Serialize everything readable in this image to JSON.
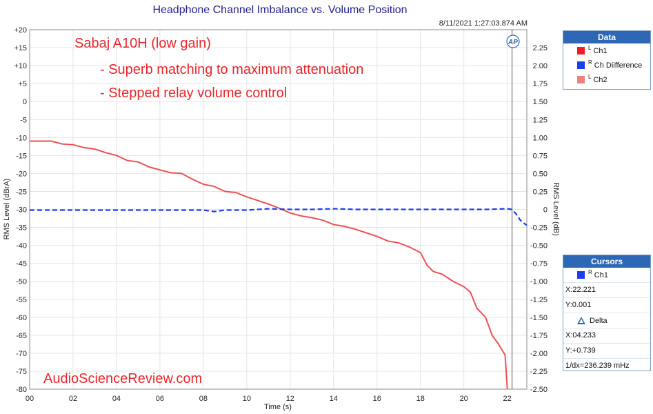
{
  "colors": {
    "ch1": "#ee1c24",
    "ch_diff": "#1c3cf0",
    "ch2": "#f08080",
    "accent": "#2d67b5",
    "annotation": "#e8262b"
  },
  "legend_panel": {
    "title": "Data",
    "items": [
      {
        "sup": "L",
        "label": "Ch1",
        "color": "#ee1c24"
      },
      {
        "sup": "R",
        "label": "Ch Diifference",
        "color": "#1c3cf0"
      },
      {
        "sup": "L",
        "label": "Ch2",
        "color": "#f08080"
      }
    ]
  },
  "cursors_panel": {
    "title": "Cursors",
    "cursor_sup": "R",
    "cursor_label": "Ch1",
    "x": "X:22.221",
    "y": "Y:0.001",
    "delta_label": "Delta",
    "dx": "X:04.233",
    "dy": "Y:+0.739",
    "ratio": "1/dx=236.239 mHz"
  },
  "annotations": {
    "line1": "Sabaj A10H (low gain)",
    "line2": "- Superb matching to maximum attenuation",
    "line3": "- Stepped relay volume control",
    "watermark": "AudioScienceReview.com"
  },
  "chart_data": {
    "type": "line",
    "title": "Headphone Channel Imbalance vs. Volume Position",
    "timestamp": "8/11/2021 1:27:03.874 AM",
    "logo_text": "AP",
    "xlabel": "Time (s)",
    "ylabel_left": "RMS Level (dBrA)",
    "ylabel_right": "RMS Level (dB)",
    "xlim": [
      0,
      22.9
    ],
    "ylim_left": [
      -80,
      20
    ],
    "ylim_right": [
      -2.5,
      2.5
    ],
    "x_ticks": [
      0,
      2,
      4,
      6,
      8,
      10,
      12,
      14,
      16,
      18,
      20,
      22
    ],
    "x_tick_labels": [
      "00",
      "02",
      "04",
      "06",
      "08",
      "10",
      "12",
      "14",
      "16",
      "18",
      "20",
      "22"
    ],
    "y_left_ticks": [
      20,
      15,
      10,
      5,
      0,
      -5,
      -10,
      -15,
      -20,
      -25,
      -30,
      -35,
      -40,
      -45,
      -50,
      -55,
      -60,
      -65,
      -70,
      -75,
      -80
    ],
    "y_left_tick_labels": [
      "+20",
      "+15",
      "+10",
      "+5",
      "0",
      "-5",
      "-10",
      "-15",
      "-20",
      "-25",
      "-30",
      "-35",
      "-40",
      "-45",
      "-50",
      "-55",
      "-60",
      "-65",
      "-70",
      "-75",
      "-80"
    ],
    "y_right_ticks": [
      2.25,
      2.0,
      1.75,
      1.5,
      1.25,
      1.0,
      0.75,
      0.5,
      0.25,
      0,
      -0.25,
      -0.5,
      -0.75,
      -1.0,
      -1.25,
      -1.5,
      -1.75,
      -2.0,
      -2.25,
      -2.5
    ],
    "y_right_tick_labels": [
      "2.25",
      "2.00",
      "1.75",
      "1.50",
      "1.25",
      "1.00",
      "0.75",
      "0.50",
      "0.25",
      "0",
      "-0.25",
      "-0.50",
      "-0.75",
      "-1.00",
      "-1.25",
      "-1.50",
      "-1.75",
      "-2.00",
      "-2.25",
      "-2.50"
    ],
    "cursor_x": 22.221,
    "grid": true,
    "legend_placement": "right",
    "series": [
      {
        "name": "Ch1",
        "axis": "left",
        "color": "#ee1c24",
        "x": [
          0,
          1.0,
          1.5,
          2.0,
          2.5,
          3.0,
          3.5,
          4.0,
          4.5,
          5.0,
          5.5,
          6.0,
          6.5,
          7.0,
          7.5,
          8.0,
          8.5,
          9.0,
          9.5,
          10.0,
          10.5,
          11.0,
          11.5,
          12.0,
          12.5,
          13.0,
          13.5,
          14.0,
          14.5,
          15.0,
          15.5,
          16.0,
          16.5,
          17.0,
          17.5,
          18.0,
          18.3,
          18.6,
          19.0,
          19.5,
          20.0,
          20.3,
          20.6,
          21.0,
          21.3,
          21.6,
          21.9,
          22.0
        ],
        "y": [
          -11,
          -11,
          -11.8,
          -12,
          -12.8,
          -13.2,
          -14.2,
          -15,
          -16.4,
          -16.8,
          -18.2,
          -19,
          -19.8,
          -20,
          -21.6,
          -23,
          -23.6,
          -25,
          -25.3,
          -26.5,
          -27.5,
          -28.5,
          -29.7,
          -31,
          -31.8,
          -32.3,
          -33,
          -34.2,
          -34.7,
          -35.5,
          -36.5,
          -37.5,
          -38.8,
          -39.3,
          -40.5,
          -42,
          -45.5,
          -47.3,
          -48,
          -50,
          -51.5,
          -53,
          -57.5,
          -60,
          -65,
          -67.5,
          -70.5,
          -80
        ]
      },
      {
        "name": "Ch Diifference",
        "axis": "right",
        "color": "#1c3cf0",
        "dashed": true,
        "x": [
          0,
          2,
          4,
          6,
          8,
          8.5,
          9,
          10,
          11,
          12,
          13,
          14,
          15,
          16,
          17,
          18,
          19,
          20,
          21,
          22,
          22.2,
          22.4,
          22.6,
          22.8,
          22.9
        ],
        "y": [
          -0.01,
          -0.01,
          -0.01,
          -0.01,
          -0.01,
          -0.03,
          -0.01,
          -0.01,
          0.01,
          0.0,
          0.0,
          0.01,
          0.0,
          0.0,
          0.0,
          0.0,
          0.0,
          0.0,
          0.0,
          0.01,
          0.0,
          -0.06,
          -0.15,
          -0.2,
          -0.22
        ]
      },
      {
        "name": "Ch2",
        "axis": "left",
        "color": "#f08080",
        "x": [
          0,
          1.0,
          1.5,
          2.0,
          2.5,
          3.0,
          3.5,
          4.0,
          4.5,
          5.0,
          5.5,
          6.0,
          6.5,
          7.0,
          7.5,
          8.0,
          8.5,
          9.0,
          9.5,
          10.0,
          10.5,
          11.0,
          11.5,
          12.0,
          12.5,
          13.0,
          13.5,
          14.0,
          14.5,
          15.0,
          15.5,
          16.0,
          16.5,
          17.0,
          17.5,
          18.0,
          18.3,
          18.6,
          19.0,
          19.5,
          20.0,
          20.3,
          20.6,
          21.0,
          21.3,
          21.6,
          21.9,
          22.0
        ],
        "y": [
          -11,
          -11,
          -11.8,
          -12,
          -12.8,
          -13.2,
          -14.2,
          -15,
          -16.4,
          -16.8,
          -18.2,
          -19,
          -19.8,
          -20,
          -21.6,
          -23,
          -23.6,
          -25,
          -25.3,
          -26.5,
          -27.5,
          -28.5,
          -29.7,
          -31,
          -31.8,
          -32.3,
          -33,
          -34.2,
          -34.7,
          -35.5,
          -36.5,
          -37.5,
          -38.8,
          -39.3,
          -40.5,
          -42,
          -45.5,
          -47.3,
          -48,
          -50,
          -51.5,
          -53,
          -57.5,
          -60,
          -65,
          -67.5,
          -70.5,
          -80
        ]
      }
    ]
  }
}
